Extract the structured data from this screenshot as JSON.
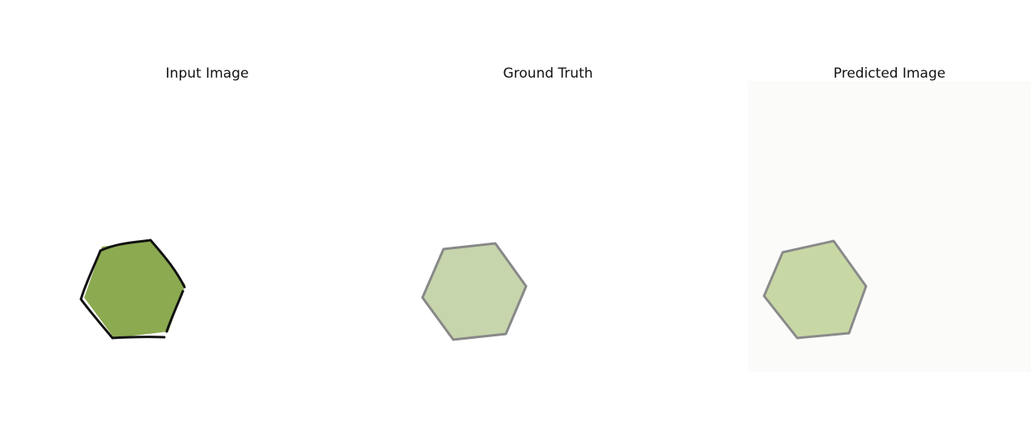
{
  "panels": [
    {
      "title": "Input Image",
      "fill": "#8caa50",
      "stroke": "#111111"
    },
    {
      "title": "Ground Truth",
      "fill": "#c6d5ac",
      "stroke": "#888888"
    },
    {
      "title": "Predicted Image",
      "fill": "#c8d8a5",
      "stroke": "#8a8a8a"
    }
  ]
}
